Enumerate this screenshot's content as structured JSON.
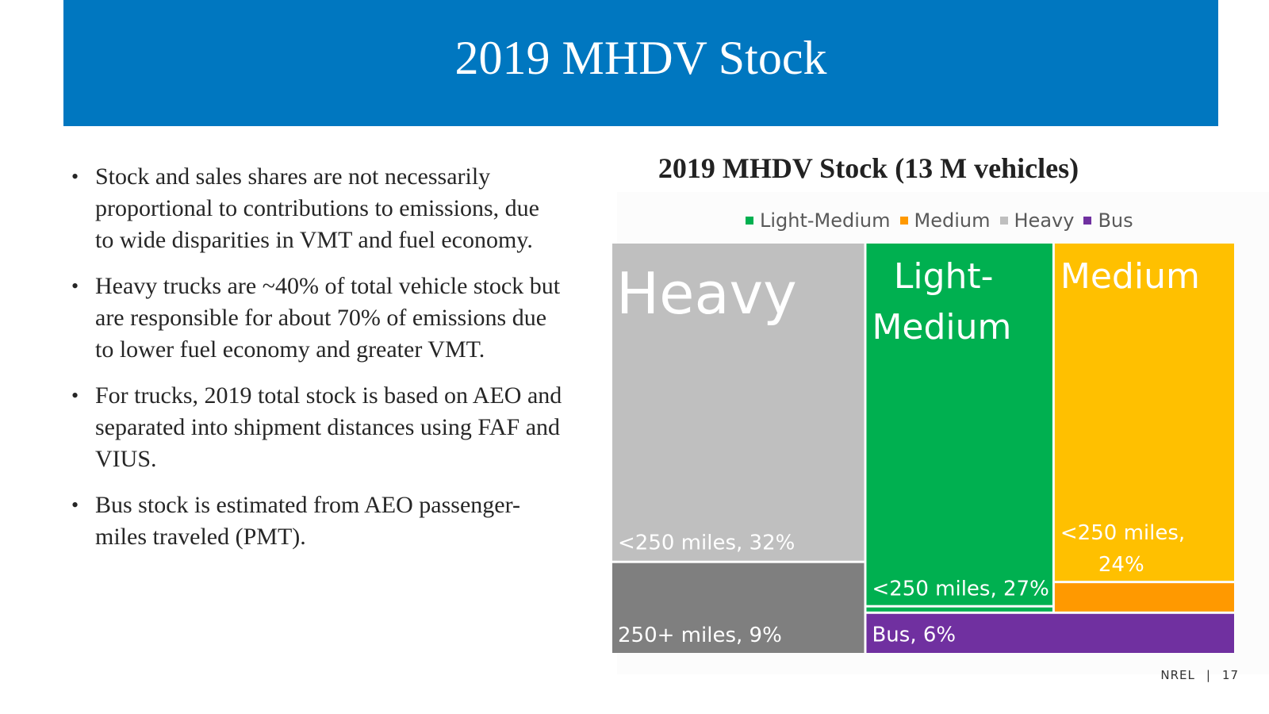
{
  "slide": {
    "title": "2019 MHDV Stock",
    "footer_org": "NREL",
    "footer_separator": "|",
    "page_number": "17"
  },
  "bullets": [
    "Stock and sales shares are not necessarily proportional to contributions to emissions, due to wide disparities in VMT and fuel economy.",
    "Heavy trucks are ~40% of total vehicle stock but are responsible for about 70% of emissions due to lower fuel economy and greater VMT.",
    "For trucks, 2019 total stock is based on AEO and separated into shipment distances using FAF and VIUS.",
    "Bus stock is estimated from AEO passenger-miles traveled (PMT)."
  ],
  "chart_data": {
    "type": "treemap",
    "title": "2019 MHDV Stock (13 M vehicles)",
    "legend": [
      {
        "name": "Light-Medium",
        "color": "#00b050"
      },
      {
        "name": "Medium",
        "color": "#ff9900"
      },
      {
        "name": "Heavy",
        "color": "#bfbfbf"
      },
      {
        "name": "Bus",
        "color": "#7030a0"
      }
    ],
    "groups": [
      {
        "name": "Heavy",
        "label_lines": [
          "Heavy"
        ],
        "color": "#bfbfbf",
        "children": [
          {
            "label": "<250 miles, 32%",
            "value": 32,
            "color": "#bfbfbf"
          },
          {
            "label": "250+ miles, 9%",
            "value": 9,
            "color": "#7f7f7f"
          }
        ]
      },
      {
        "name": "Light-Medium",
        "label_lines": [
          "Light-",
          "Medium"
        ],
        "color": "#00b050",
        "children": [
          {
            "label": "<250 miles, 27%",
            "value": 27,
            "color": "#00b050"
          },
          {
            "label": "",
            "value": 0.3,
            "color": "#00b050"
          }
        ]
      },
      {
        "name": "Medium",
        "label_lines": [
          "Medium"
        ],
        "color": "#ffc000",
        "children": [
          {
            "label": "<250 miles, 24%",
            "label_lines": [
              "<250 miles,",
              "24%"
            ],
            "value": 24,
            "color": "#ffc000"
          },
          {
            "label": "",
            "value": 2,
            "color": "#ff9900"
          }
        ]
      },
      {
        "name": "Bus",
        "label_lines": [],
        "color": "#7030a0",
        "children": [
          {
            "label": "Bus, 6%",
            "value": 6,
            "color": "#7030a0"
          }
        ]
      }
    ]
  }
}
